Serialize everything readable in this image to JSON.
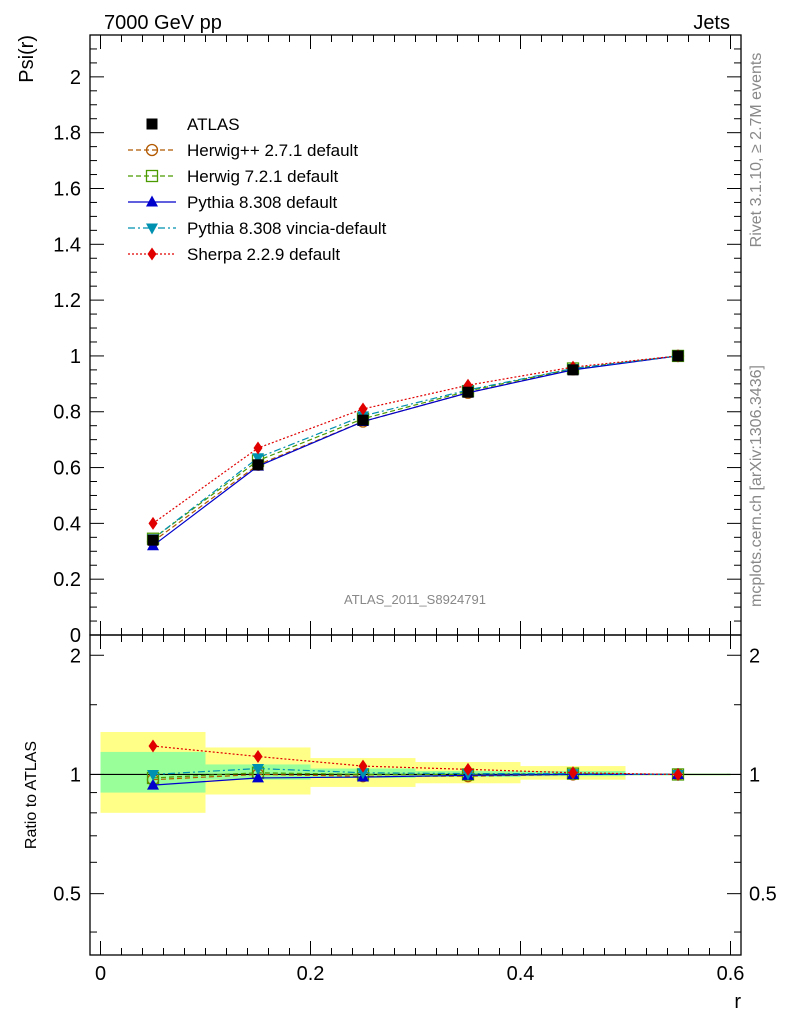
{
  "header": {
    "left": "7000 GeV pp",
    "right": "Jets"
  },
  "side_text": {
    "top": "Rivet 3.1.10, ≥ 2.7M events",
    "bottom": "mcplots.cern.ch [arXiv:1306.3436]"
  },
  "watermark": "ATLAS_2011_S8924791",
  "chart_data": [
    {
      "type": "line",
      "ylabel": "Psi(r)",
      "ylim": [
        0,
        2.15
      ],
      "yticks": [
        "0",
        "0.2",
        "0.4",
        "0.6",
        "0.8",
        "1",
        "1.2",
        "1.4",
        "1.6",
        "1.8",
        "2"
      ],
      "legend_position": "top-left",
      "x": [
        0.05,
        0.15,
        0.25,
        0.35,
        0.45,
        0.55
      ],
      "series": [
        {
          "name": "ATLAS",
          "color": "#000000",
          "marker": "square-filled",
          "values": [
            0.34,
            0.61,
            0.77,
            0.87,
            0.95,
            1.0
          ]
        },
        {
          "name": "Herwig++ 2.7.1 default",
          "color": "#b25900",
          "marker": "circle-open",
          "line": "dashed",
          "values": [
            0.335,
            0.61,
            0.765,
            0.868,
            0.952,
            1.0
          ]
        },
        {
          "name": "Herwig 7.2.1 default",
          "color": "#4a9a00",
          "marker": "square-open",
          "line": "dashed",
          "values": [
            0.345,
            0.625,
            0.775,
            0.874,
            0.955,
            1.0
          ]
        },
        {
          "name": "Pythia 8.308 default",
          "color": "#0000cc",
          "marker": "triangle-up",
          "line": "solid",
          "values": [
            0.32,
            0.605,
            0.765,
            0.868,
            0.95,
            1.0
          ]
        },
        {
          "name": "Pythia 8.308 vincia-default",
          "color": "#0090b0",
          "marker": "triangle-down",
          "line": "dashdot",
          "values": [
            0.345,
            0.635,
            0.785,
            0.878,
            0.955,
            1.0
          ]
        },
        {
          "name": "Sherpa 2.2.9 default",
          "color": "#e00000",
          "marker": "diamond",
          "line": "dotted",
          "values": [
            0.4,
            0.67,
            0.81,
            0.895,
            0.96,
            1.0
          ]
        }
      ]
    },
    {
      "type": "line",
      "ylabel": "Ratio to ATLAS",
      "xlabel": "r",
      "xlim": [
        -0.01,
        0.61
      ],
      "xticks": [
        "0",
        "0.2",
        "0.4",
        "0.6"
      ],
      "ylim": [
        0.35,
        2.25
      ],
      "yticks": [
        "0.5",
        "1",
        "2"
      ],
      "log_y": true,
      "x": [
        0.05,
        0.15,
        0.25,
        0.35,
        0.45,
        0.55
      ],
      "bands": {
        "x_edges": [
          0.0,
          0.1,
          0.2,
          0.3,
          0.4,
          0.5,
          0.6
        ],
        "stat_color": "#99ff99",
        "total_color": "#ffff88",
        "stat": [
          [
            0.9,
            1.14
          ],
          [
            0.97,
            1.06
          ],
          [
            0.98,
            1.035
          ],
          [
            0.985,
            1.02
          ],
          [
            0.99,
            1.02
          ],
          [
            0.995,
            1.005
          ]
        ],
        "total": [
          [
            0.8,
            1.28
          ],
          [
            0.89,
            1.17
          ],
          [
            0.93,
            1.1
          ],
          [
            0.95,
            1.075
          ],
          [
            0.97,
            1.05
          ],
          [
            0.995,
            1.005
          ]
        ]
      },
      "series": [
        {
          "name": "Herwig++ 2.7.1 default",
          "values": [
            0.97,
            1.0,
            0.99,
            0.99,
            1.0,
            1.0
          ]
        },
        {
          "name": "Herwig 7.2.1 default",
          "values": [
            0.98,
            1.01,
            1.0,
            1.0,
            1.005,
            1.0
          ]
        },
        {
          "name": "Pythia 8.308 default",
          "values": [
            0.94,
            0.98,
            0.985,
            0.995,
            1.0,
            1.0
          ]
        },
        {
          "name": "Pythia 8.308 vincia-default",
          "values": [
            1.0,
            1.035,
            1.01,
            1.005,
            1.005,
            1.0
          ]
        },
        {
          "name": "Sherpa 2.2.9 default",
          "values": [
            1.18,
            1.11,
            1.05,
            1.03,
            1.01,
            1.0
          ]
        }
      ]
    }
  ]
}
